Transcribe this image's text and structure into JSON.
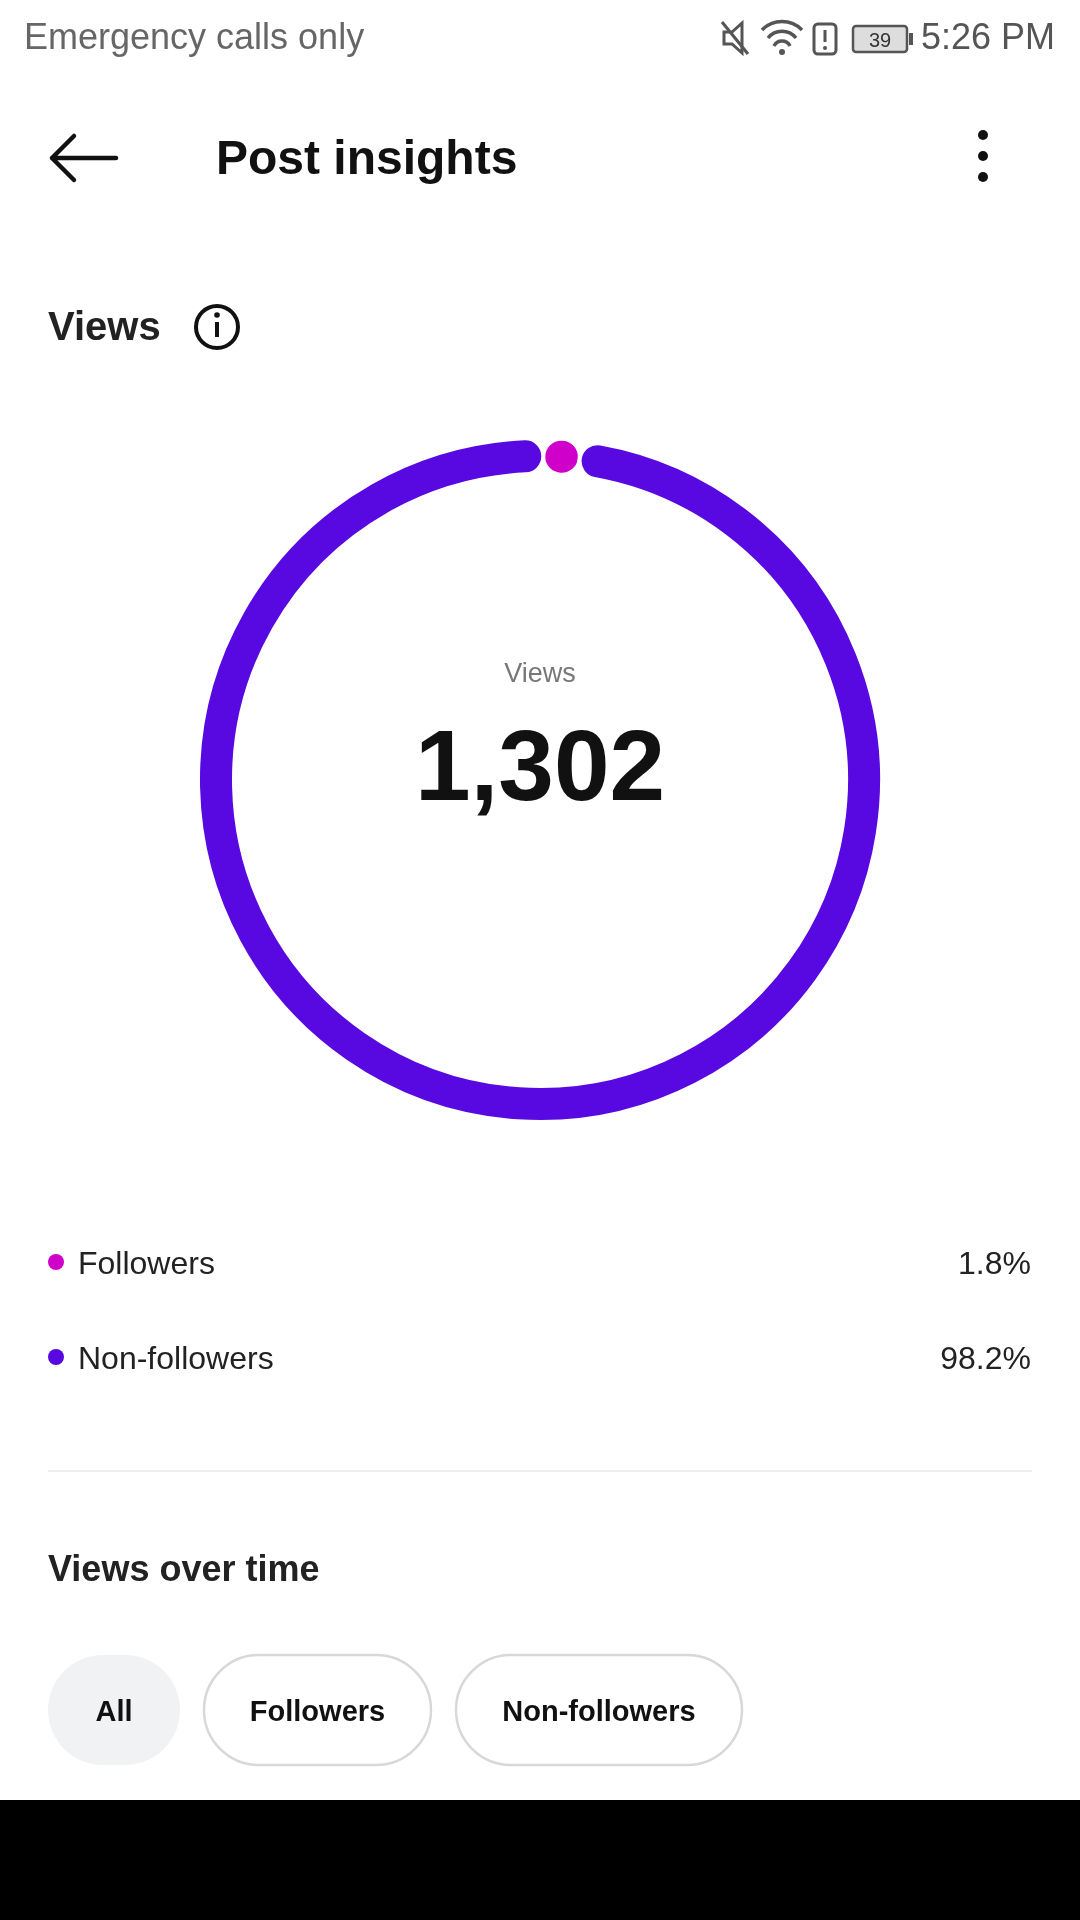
{
  "chart_data": {
    "type": "donut",
    "title": "Post insights",
    "subtitle": "Views",
    "categories": [
      "Followers",
      "Non-followers"
    ],
    "values": [
      1.8,
      98.2
    ],
    "colors": [
      "#cf00c9",
      "#5808e0"
    ],
    "value_labels": [
      "1.8%",
      "98.2%"
    ],
    "legend": "bottom",
    "annotations": [
      "Views",
      "1,302",
      "Views over time",
      "All",
      "Followers",
      "Non-followers",
      "Emergency calls only",
      "5:26 PM",
      "39"
    ]
  }
}
